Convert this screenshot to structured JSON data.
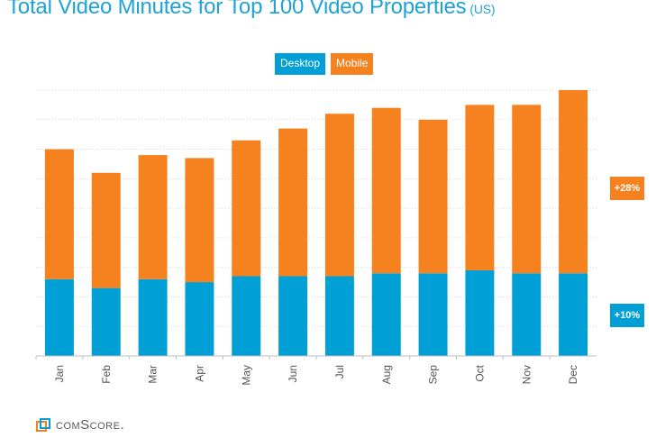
{
  "title": {
    "main": "Total Video Minutes for Top 100 Video Properties",
    "region": "(US)"
  },
  "legend": {
    "desktop": "Desktop",
    "mobile": "Mobile"
  },
  "badges": {
    "mobile": "+28%",
    "desktop": "+10%"
  },
  "logo": "comScore.",
  "colors": {
    "desktop": "#00a0d6",
    "mobile": "#f5821f",
    "title": "#1ea3d6"
  },
  "chart_data": {
    "type": "bar",
    "stacked": true,
    "categories": [
      "Jan",
      "Feb",
      "Mar",
      "Apr",
      "May",
      "Jun",
      "Jul",
      "Aug",
      "Sep",
      "Oct",
      "Nov",
      "Dec"
    ],
    "series": [
      {
        "name": "Desktop",
        "values": [
          2.6,
          2.3,
          2.6,
          2.5,
          2.7,
          2.7,
          2.7,
          2.8,
          2.8,
          2.9,
          2.8,
          2.8
        ]
      },
      {
        "name": "Mobile",
        "values": [
          4.4,
          3.9,
          4.2,
          4.2,
          4.6,
          5.0,
          5.5,
          5.6,
          5.2,
          5.6,
          5.7,
          6.2
        ]
      }
    ],
    "ylim": [
      0,
      9
    ],
    "grid": true,
    "legend_position": "top-center"
  }
}
